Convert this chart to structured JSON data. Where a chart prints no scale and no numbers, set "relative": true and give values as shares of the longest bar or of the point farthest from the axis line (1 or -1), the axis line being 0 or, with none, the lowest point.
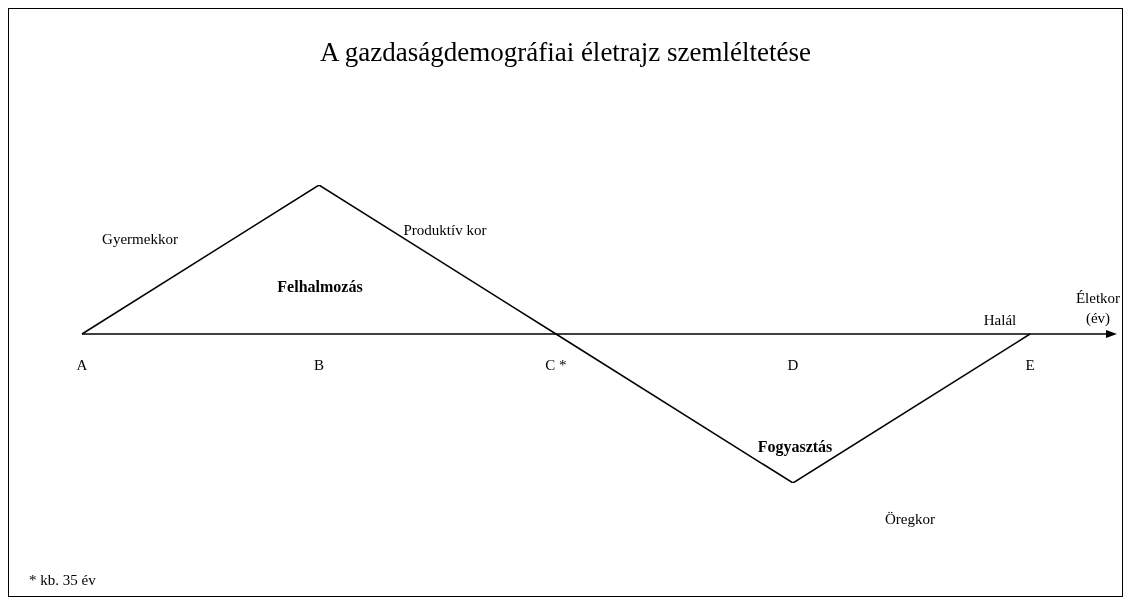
{
  "chart_data": {
    "type": "line",
    "title": "A gazdaságdemográfiai életrajz szemléltetése",
    "xlabel": "Életkor (év)",
    "categories": [
      "A",
      "B",
      "C *",
      "D",
      "E"
    ],
    "relative": true,
    "series": [
      {
        "color": "#000000",
        "values": [
          0,
          1,
          0,
          -1,
          0
        ]
      }
    ],
    "marker": "none",
    "annotations": [
      "Gyermekkor",
      "Produktív kor",
      "Felhalmozás",
      "Fogyasztás",
      "Öregkor",
      "Halál",
      "* kb. 35 év"
    ]
  }
}
